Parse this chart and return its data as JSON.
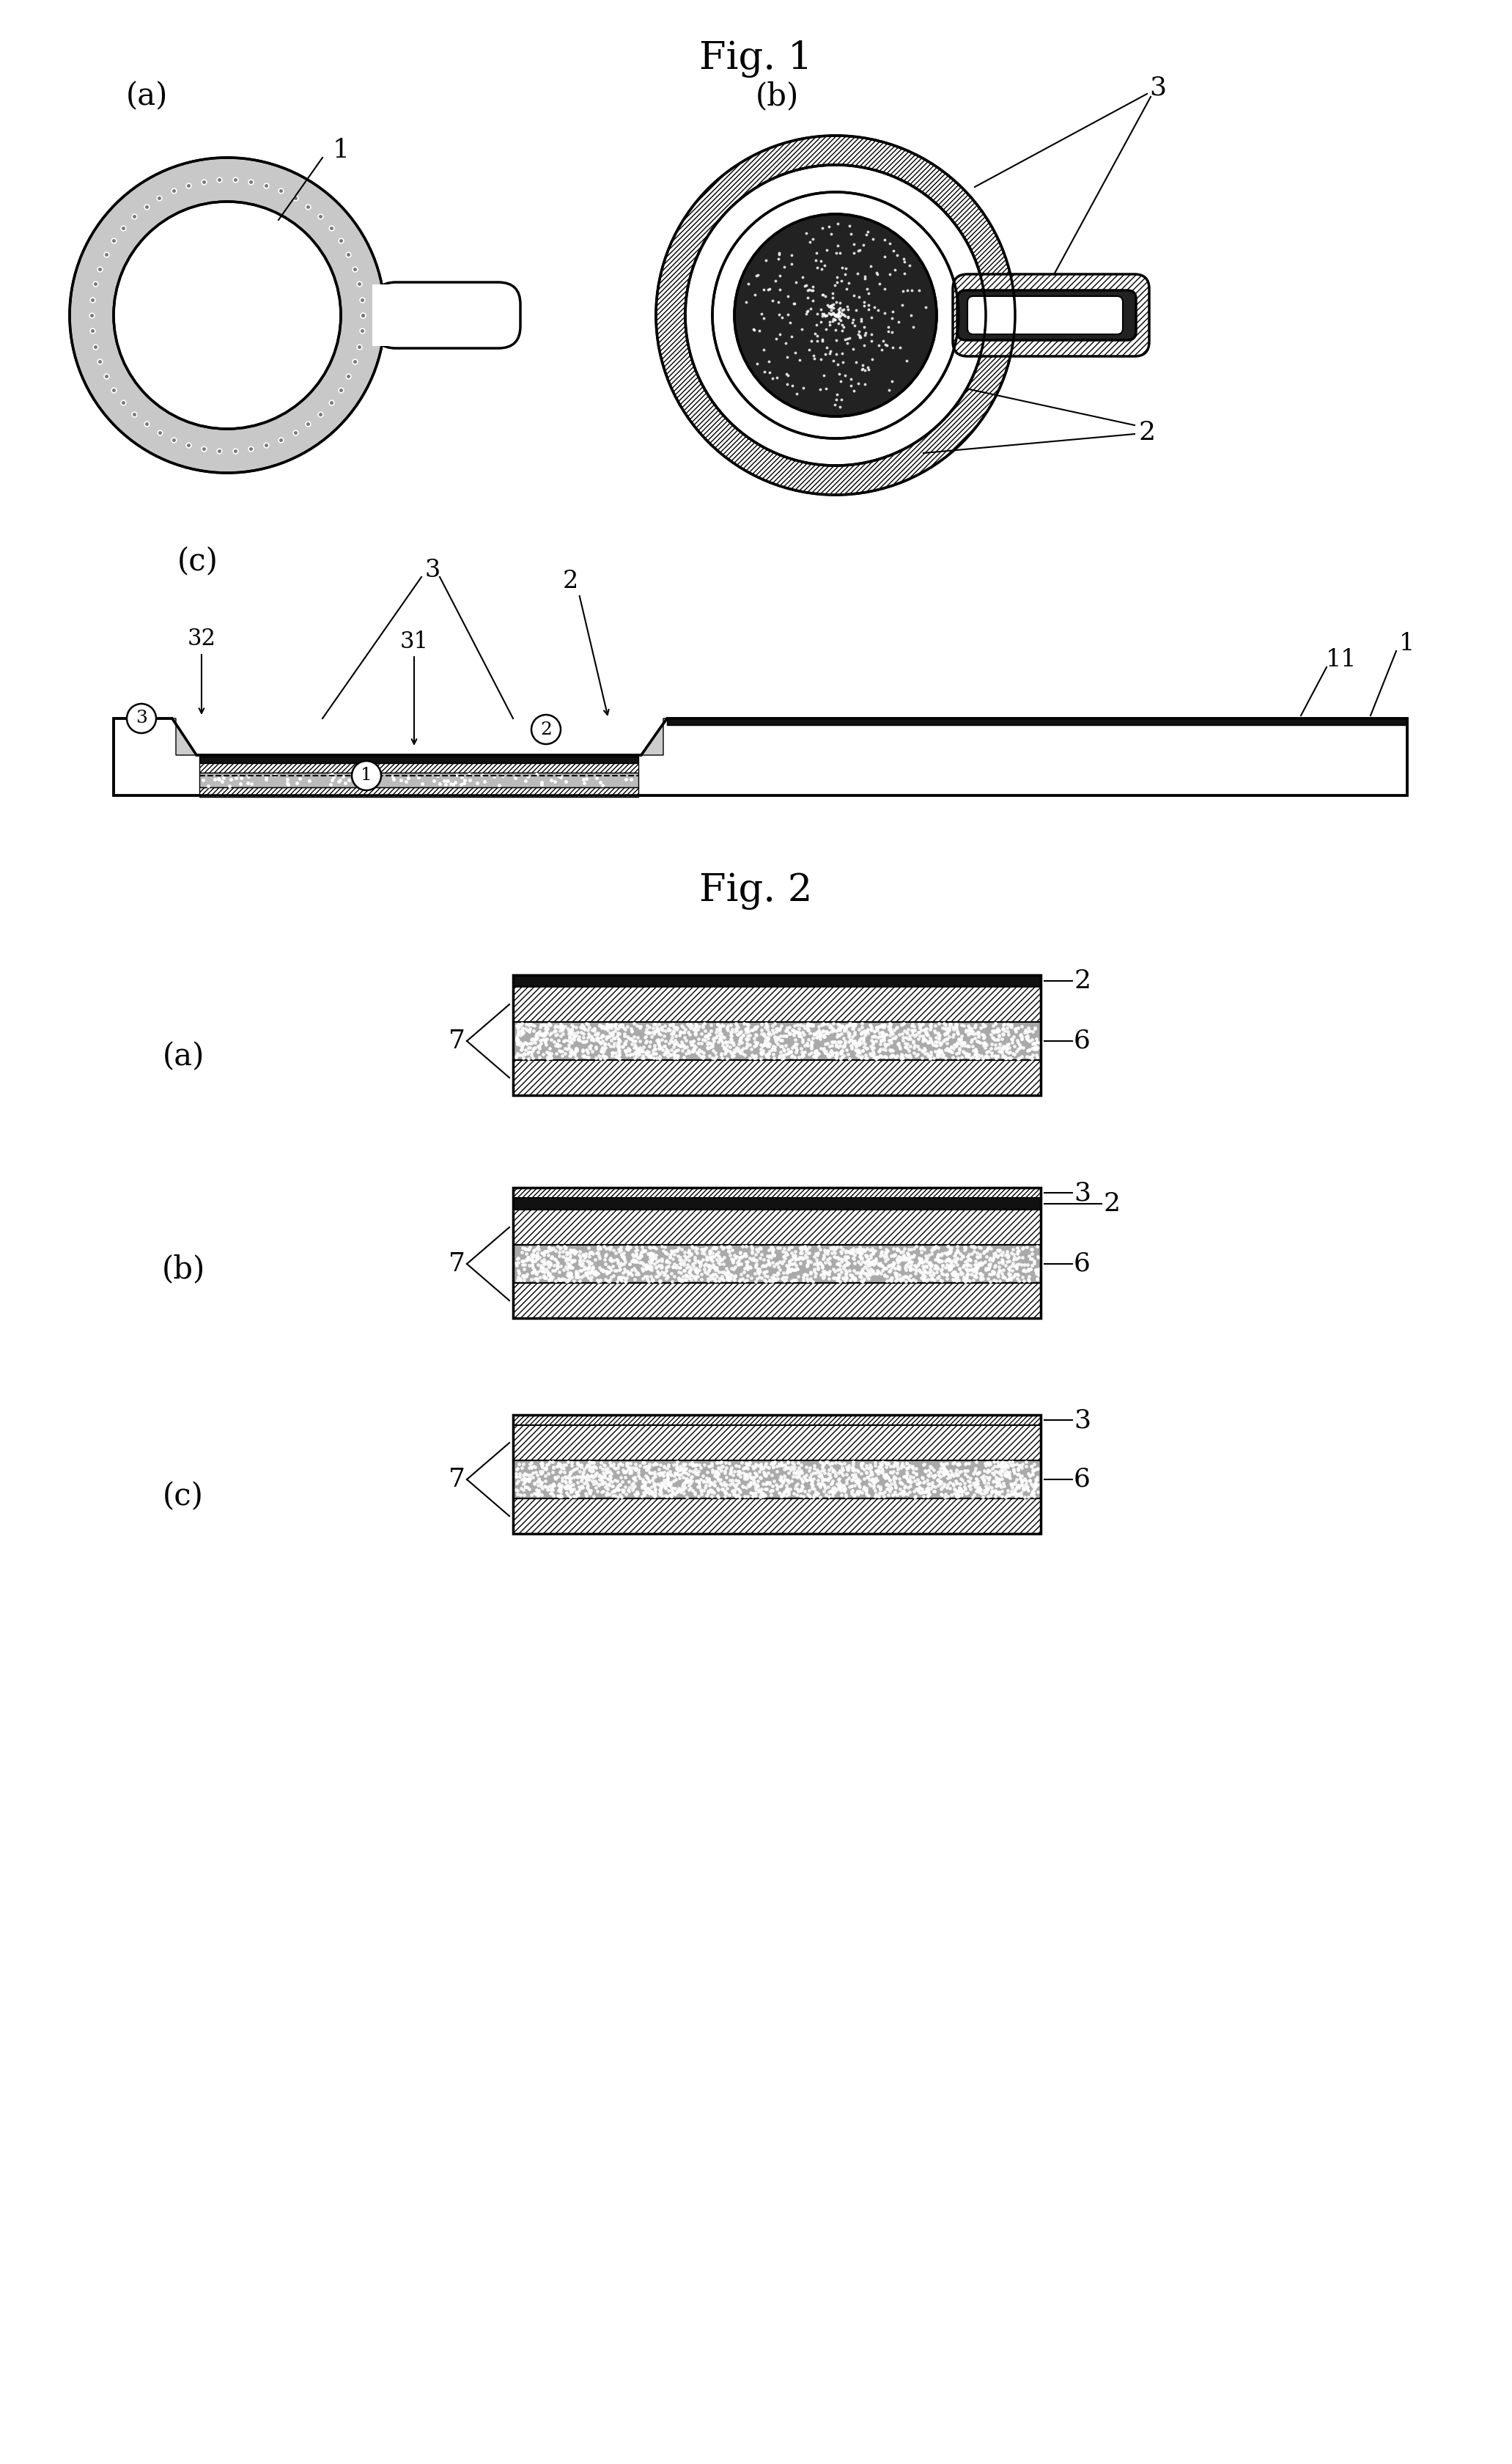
{
  "fig_title": "Fig. 1",
  "fig2_title": "Fig. 2",
  "bg_color": "#ffffff",
  "line_color": "#000000",
  "label_a": "(a)",
  "label_b": "(b)",
  "label_c": "(c)"
}
